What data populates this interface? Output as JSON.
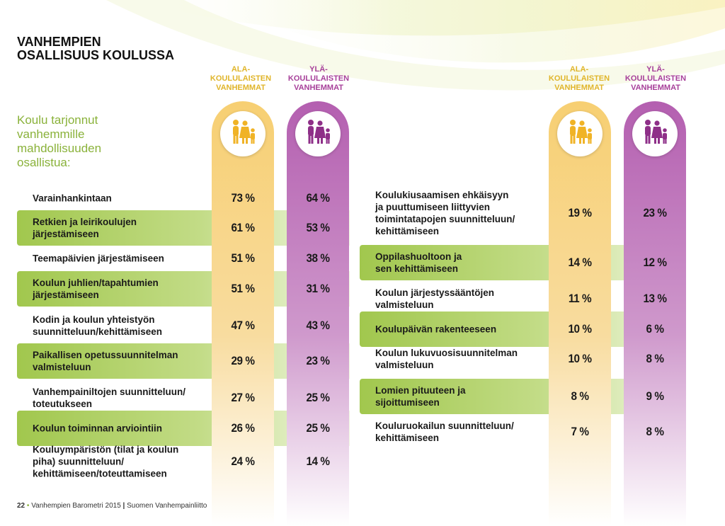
{
  "title": {
    "line1": "VANHEMPIEN",
    "line2": "OSALLISUUS KOULUSSA"
  },
  "intro": {
    "lines": [
      "Koulu tarjonnut",
      "vanhemmille",
      "mahdollisuuden",
      "osallistua:"
    ]
  },
  "columns": {
    "ala": {
      "line1": "ALA-",
      "line2": "KOULULAISTEN",
      "line3": "VANHEMMAT",
      "icon": "family-icon",
      "color": "#f7cf72"
    },
    "yla": {
      "line1": "YLÄ-",
      "line2": "KOULULAISTEN",
      "line3": "VANHEMMAT",
      "icon": "family-icon",
      "color": "#b45fb0"
    }
  },
  "table_left": [
    {
      "lines": [
        "Varainhankintaan"
      ],
      "ala": "73 %",
      "yla": "64 %",
      "highlight": false
    },
    {
      "lines": [
        "Retkien ja leirikoulujen",
        "järjestämiseen"
      ],
      "ala": "61 %",
      "yla": "53 %",
      "highlight": true
    },
    {
      "lines": [
        "Teemapäivien järjestämiseen"
      ],
      "ala": "51 %",
      "yla": "38 %",
      "highlight": false
    },
    {
      "lines": [
        "Koulun juhlien/tapahtumien",
        "järjestämiseen"
      ],
      "ala": "51 %",
      "yla": "31 %",
      "highlight": true
    },
    {
      "lines": [
        "Kodin ja koulun yhteistyön",
        "suunnitteluun/kehittämiseen"
      ],
      "ala": "47 %",
      "yla": "43 %",
      "highlight": false
    },
    {
      "lines": [
        "Paikallisen opetussuunnitelman",
        "valmisteluun"
      ],
      "ala": "29 %",
      "yla": "23 %",
      "highlight": true
    },
    {
      "lines": [
        "Vanhempainiltojen suunnitteluun/",
        "toteutukseen"
      ],
      "ala": "27 %",
      "yla": "25 %",
      "highlight": false
    },
    {
      "lines": [
        "Koulun toiminnan arviointiin"
      ],
      "ala": "26 %",
      "yla": "25 %",
      "highlight": true
    },
    {
      "lines": [
        "Kouluympäristön (tilat ja koulun",
        "piha) suunnitteluun/",
        "kehittämiseen/toteuttamiseen"
      ],
      "ala": "24 %",
      "yla": "14 %",
      "highlight": false
    }
  ],
  "table_right": [
    {
      "lines": [
        "Koulukiusaamisen ehkäisyyn",
        "ja puuttumiseen liittyvien",
        "toimintatapojen suunnitteluun/",
        "kehittämiseen"
      ],
      "ala": "19 %",
      "yla": "23 %",
      "highlight": false
    },
    {
      "lines": [
        "Oppilashuoltoon ja",
        "sen kehittämiseen"
      ],
      "ala": "14 %",
      "yla": "12 %",
      "highlight": true
    },
    {
      "lines": [
        "Koulun järjestyssääntöjen",
        "valmisteluun"
      ],
      "ala": "11 %",
      "yla": "13 %",
      "highlight": false
    },
    {
      "lines": [
        "Koulupäivän rakenteeseen"
      ],
      "ala": "10 %",
      "yla": "6 %",
      "highlight": true
    },
    {
      "lines": [
        "Koulun lukuvuosisuunnitelman",
        "valmisteluun"
      ],
      "ala": "10 %",
      "yla": "8 %",
      "highlight": false
    },
    {
      "lines": [
        "Lomien pituuteen ja",
        "sijoittumiseen"
      ],
      "ala": "8 %",
      "yla": "9 %",
      "highlight": true
    },
    {
      "lines": [
        "Kouluruokailun suunnitteluun/",
        "kehittämiseen"
      ],
      "ala": "7 %",
      "yla": "8 %",
      "highlight": false
    }
  ],
  "footer": {
    "page": "22",
    "bullet": "•",
    "publication": "Vanhempien Barometri 2015",
    "separator": "|",
    "publisher": "Suomen Vanhempainliitto"
  },
  "colors": {
    "accent_green": "#8ab23a",
    "band_green": "#9cc444",
    "ala_yellow": "#f7cf72",
    "yla_purple": "#b45fb0"
  }
}
